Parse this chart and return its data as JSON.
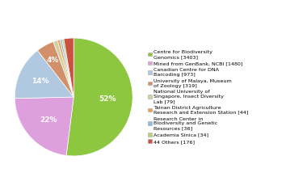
{
  "labels": [
    "Centre for Biodiversity\nGenomics [3403]",
    "Mined from GenBank, NCBI [1480]",
    "Canadian Centre for DNA\nBarcoding [973]",
    "University of Malaya, Museum\nof Zoology [319]",
    "National University of\nSingapore, Insect Diversity\nLab [79]",
    "Tainan District Agriculture\nResearch and Extension Station [44]",
    "Research Center in\nBiodiversity and Genetic\nResources [36]",
    "Academia Sinica [34]",
    "44 Others [176]"
  ],
  "values": [
    3403,
    1480,
    973,
    319,
    79,
    44,
    36,
    34,
    176
  ],
  "colors": [
    "#8dc63f",
    "#dda0dd",
    "#b0c8e0",
    "#d2906a",
    "#d4cfa0",
    "#e8a050",
    "#90b8d8",
    "#b8d080",
    "#cc5040"
  ],
  "pct_thresholds": [
    10,
    10,
    10,
    3
  ],
  "background_color": "#ffffff",
  "figsize": [
    3.8,
    2.4
  ],
  "dpi": 100
}
